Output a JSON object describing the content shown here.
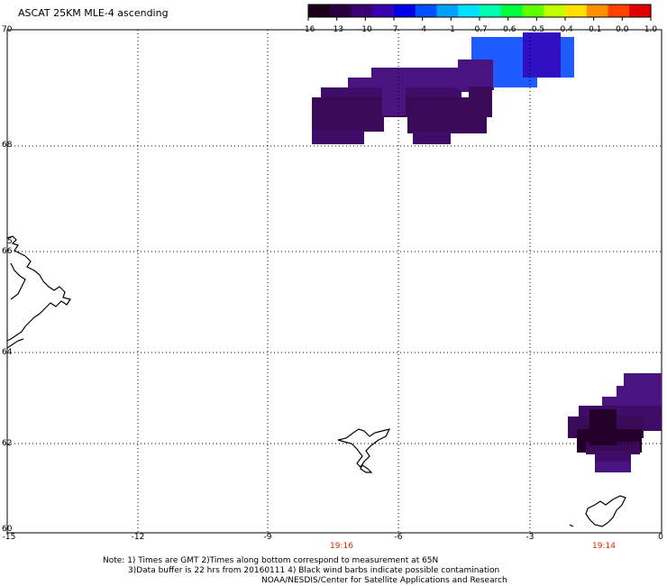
{
  "title": "ASCAT 25KM MLE-4 ascending",
  "colorbar": {
    "colors": [
      "#1a0018",
      "#2a0040",
      "#3a0070",
      "#3a00b0",
      "#0000e6",
      "#0050ff",
      "#00a0ff",
      "#00e0ff",
      "#00ffb0",
      "#00ff40",
      "#60ff00",
      "#c0ff00",
      "#ffe000",
      "#ff9000",
      "#ff4000",
      "#e00000"
    ],
    "ticks": [
      "-16",
      "-13",
      "-10",
      "-7",
      "-4",
      "-1",
      "-0.7",
      "-0.6",
      "-0.5",
      "-0.4",
      "-0.1",
      "0.0",
      "1.0"
    ]
  },
  "lat_labels": [
    "70",
    "68",
    "66",
    "64",
    "62",
    "60"
  ],
  "lon_labels": [
    "-15",
    "-12",
    "-9",
    "-6",
    "-3",
    "0"
  ],
  "orbit_times": [
    "19:16",
    "19:14"
  ],
  "side_label": "5",
  "notes": [
    "Note: 1) Times are GMT 2)Times along bottom correspond to measurement at 65N",
    "3)Data buffer is 22 hrs from 20160111 4) Black wind barbs indicate possible contamination",
    "NOAA/NESDIS/Center for Satellite Applications and Research"
  ],
  "swath_colors": {
    "purple_dark": "#3a0a58",
    "purple": "#4a1480",
    "purple_mid": "#3f0d68",
    "near_black": "#22002a",
    "blue": "#1e5cff",
    "blue2": "#1a4fe8",
    "indigo": "#3010c0"
  }
}
